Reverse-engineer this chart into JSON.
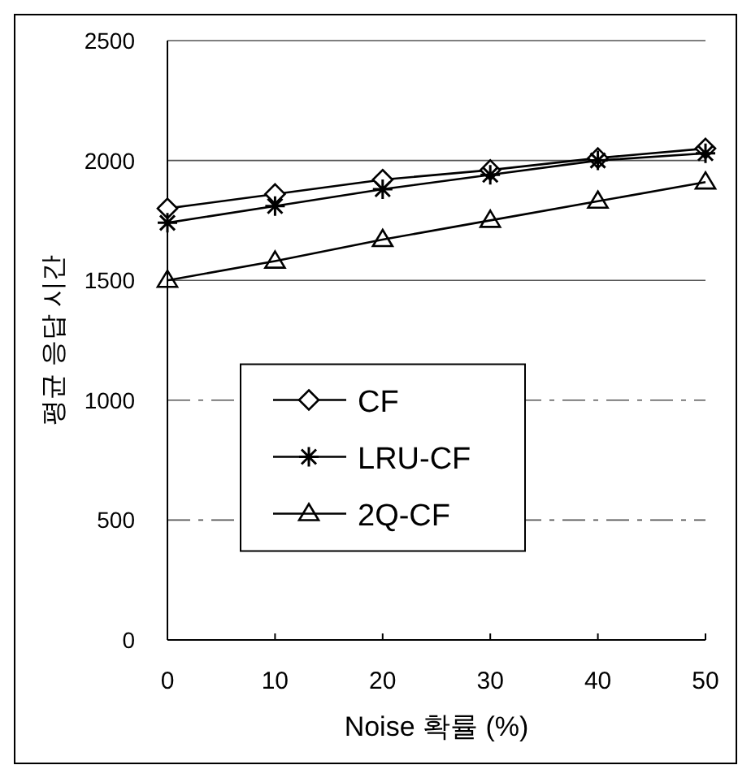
{
  "chart_data": {
    "type": "line",
    "xlabel": "Noise 확률 (%)",
    "ylabel": "평균 응답 시간",
    "x": [
      0,
      10,
      20,
      30,
      40,
      50
    ],
    "xlim": [
      0,
      50
    ],
    "xticks": [
      0,
      10,
      20,
      30,
      40,
      50
    ],
    "ylim": [
      0,
      2500
    ],
    "yticks": [
      0,
      500,
      1000,
      1500,
      2000,
      2500
    ],
    "grid": "y",
    "legend": "left",
    "line_style": "solid",
    "series": [
      {
        "name": "CF",
        "color": "#000000",
        "marker": "diamond",
        "values": [
          1800,
          1860,
          1920,
          1960,
          2010,
          2050
        ]
      },
      {
        "name": "LRU-CF",
        "color": "#000000",
        "marker": "cross",
        "values": [
          1740,
          1810,
          1880,
          1940,
          2000,
          2030
        ]
      },
      {
        "name": "2Q-CF",
        "color": "#000000",
        "marker": "triangle",
        "values": [
          1500,
          1580,
          1670,
          1750,
          1830,
          1910
        ]
      }
    ]
  }
}
